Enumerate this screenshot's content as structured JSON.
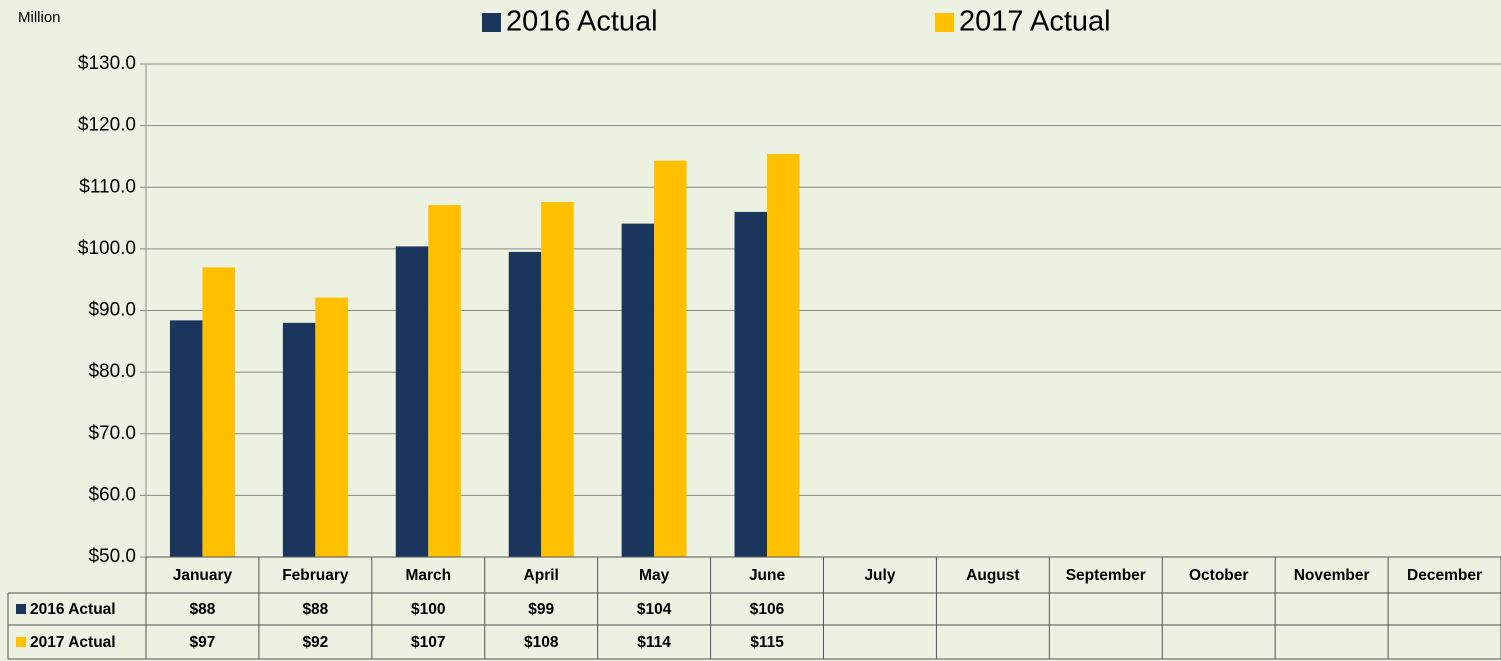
{
  "chart_data": {
    "type": "bar",
    "y_unit_label": "Million",
    "categories": [
      "January",
      "February",
      "March",
      "April",
      "May",
      "June",
      "July",
      "August",
      "September",
      "October",
      "November",
      "December"
    ],
    "series": [
      {
        "name": "2016 Actual",
        "color": "#1b365d",
        "values": [
          88.4,
          88.0,
          100.4,
          99.5,
          104.1,
          106.0,
          null,
          null,
          null,
          null,
          null,
          null
        ],
        "value_labels": [
          "$88",
          "$88",
          "$100",
          "$99",
          "$104",
          "$106",
          null,
          null,
          null,
          null,
          null,
          null
        ]
      },
      {
        "name": "2017 Actual",
        "color": "#ffc000",
        "values": [
          97.0,
          92.1,
          107.1,
          107.6,
          114.3,
          115.4,
          null,
          null,
          null,
          null,
          null,
          null
        ],
        "value_labels": [
          "$97",
          "$92",
          "$107",
          "$108",
          "$114",
          "$115",
          null,
          null,
          null,
          null,
          null,
          null
        ]
      }
    ],
    "ylim": [
      50,
      130
    ],
    "yticks": [
      {
        "value": 50,
        "label": "$50.0"
      },
      {
        "value": 60,
        "label": "$60.0"
      },
      {
        "value": 70,
        "label": "$70.0"
      },
      {
        "value": 80,
        "label": "$80.0"
      },
      {
        "value": 90,
        "label": "$90.0"
      },
      {
        "value": 100,
        "label": "$100.0"
      },
      {
        "value": 110,
        "label": "$110.0"
      },
      {
        "value": 120,
        "label": "$120.0"
      },
      {
        "value": 130,
        "label": "$130.0"
      }
    ],
    "grid": true
  }
}
